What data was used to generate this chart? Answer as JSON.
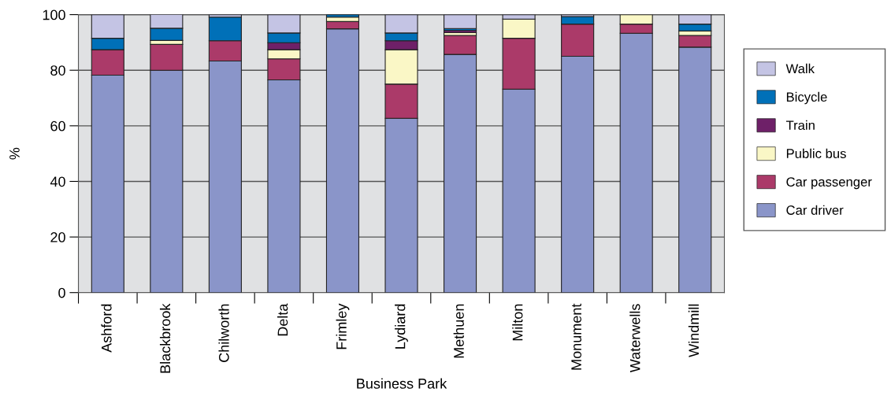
{
  "chart_data": {
    "type": "bar",
    "stacked": true,
    "xlabel": "Business Park",
    "ylabel": "%",
    "ylim": [
      0,
      100
    ],
    "yticks": [
      0,
      20,
      40,
      60,
      80,
      100
    ],
    "grid": "y",
    "legend": "right",
    "categories": [
      "Ashford",
      "Blackbrook",
      "Chilworth",
      "Delta",
      "Frimley",
      "Lydiard",
      "Methuen",
      "Milton",
      "Monument",
      "Waterwells",
      "Windmill"
    ],
    "series": [
      {
        "name": "Car driver",
        "color": "#8a95c9",
        "values": [
          78.2,
          80,
          83.3,
          76.5,
          94.9,
          62.7,
          85.7,
          73.2,
          85.0,
          93.3,
          88.3
        ]
      },
      {
        "name": "Car passenger",
        "color": "#ab3a69",
        "values": [
          9.2,
          9.3,
          7.3,
          7.6,
          2.6,
          12.3,
          6.8,
          18.3,
          11.6,
          3.3,
          4.2
        ]
      },
      {
        "name": "Public bus",
        "color": "#faf7c6",
        "values": [
          null,
          1.4,
          null,
          3.3,
          1.6,
          12.4,
          1.0,
          6.9,
          null,
          3.4,
          1.6
        ]
      },
      {
        "name": "Train",
        "color": "#6e2068",
        "values": [
          null,
          null,
          null,
          2.5,
          null,
          3.2,
          0.8,
          null,
          null,
          null,
          null
        ]
      },
      {
        "name": "Bicycle",
        "color": "#0070b8",
        "values": [
          4.1,
          4.4,
          8.5,
          3.5,
          0.9,
          2.8,
          0.7,
          null,
          2.7,
          null,
          2.5
        ]
      },
      {
        "name": "Walk",
        "color": "#c4c4e4",
        "values": [
          8.5,
          5.0,
          0.9,
          6.6,
          null,
          6.6,
          5.0,
          1.6,
          0.7,
          null,
          3.4
        ]
      }
    ]
  }
}
